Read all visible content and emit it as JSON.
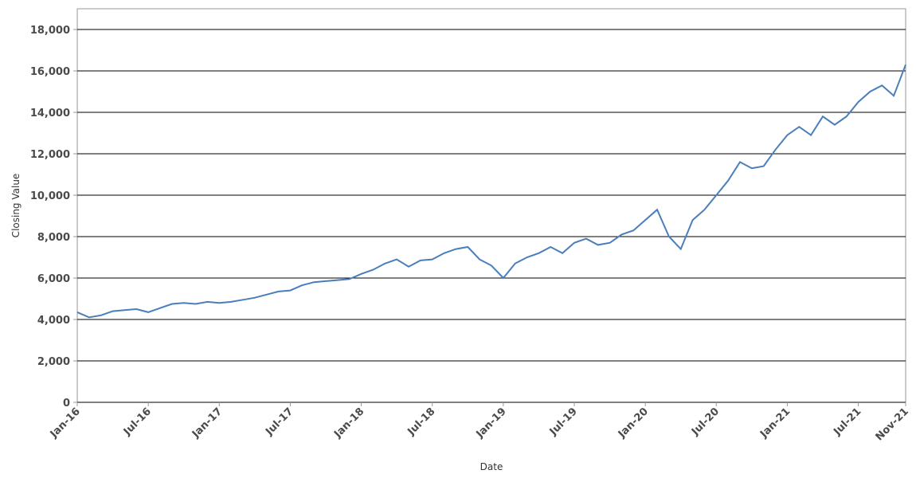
{
  "chart_data": {
    "type": "line",
    "x_label": "Date",
    "y_label": "Closing Value",
    "x": [
      "Jan-16",
      "Feb-16",
      "Mar-16",
      "Apr-16",
      "May-16",
      "Jun-16",
      "Jul-16",
      "Aug-16",
      "Sep-16",
      "Oct-16",
      "Nov-16",
      "Dec-16",
      "Jan-17",
      "Feb-17",
      "Mar-17",
      "Apr-17",
      "May-17",
      "Jun-17",
      "Jul-17",
      "Aug-17",
      "Sep-17",
      "Oct-17",
      "Nov-17",
      "Dec-17",
      "Jan-18",
      "Feb-18",
      "Mar-18",
      "Apr-18",
      "May-18",
      "Jun-18",
      "Jul-18",
      "Aug-18",
      "Sep-18",
      "Oct-18",
      "Nov-18",
      "Dec-18",
      "Jan-19",
      "Feb-19",
      "Mar-19",
      "Apr-19",
      "May-19",
      "Jun-19",
      "Jul-19",
      "Aug-19",
      "Sep-19",
      "Oct-19",
      "Nov-19",
      "Dec-19",
      "Jan-20",
      "Feb-20",
      "Mar-20",
      "Apr-20",
      "May-20",
      "Jun-20",
      "Jul-20",
      "Aug-20",
      "Sep-20",
      "Oct-20",
      "Nov-20",
      "Dec-20",
      "Jan-21",
      "Feb-21",
      "Mar-21",
      "Apr-21",
      "May-21",
      "Jun-21",
      "Jul-21",
      "Aug-21",
      "Sep-21",
      "Oct-21",
      "Nov-21"
    ],
    "series": [
      {
        "color": "#4a7ebb",
        "values": [
          4350,
          4100,
          4200,
          4400,
          4450,
          4500,
          4350,
          4550,
          4750,
          4800,
          4750,
          4850,
          4800,
          4850,
          4950,
          5050,
          5200,
          5350,
          5400,
          5650,
          5800,
          5850,
          5900,
          5950,
          6200,
          6400,
          6700,
          6900,
          6550,
          6850,
          6900,
          7200,
          7400,
          7500,
          6900,
          6600,
          6000,
          6700,
          7000,
          7200,
          7500,
          7200,
          7700,
          7900,
          7600,
          7700,
          8100,
          8300,
          8800,
          9300,
          8000,
          7400,
          8800,
          9300,
          10000,
          10700,
          11600,
          11300,
          11400,
          12200,
          12900,
          13300,
          12900,
          13800,
          13400,
          13800,
          14500,
          15000,
          15300,
          14800,
          16300
        ]
      }
    ],
    "xticks": [
      "Jan-16",
      "Jul-16",
      "Jan-17",
      "Jul-17",
      "Jan-18",
      "Jul-18",
      "Jan-19",
      "Jul-19",
      "Jan-20",
      "Jul-20",
      "Jan-21",
      "Jul-21",
      "Nov-21"
    ],
    "ylim": [
      0,
      19000
    ],
    "yticks": [
      {
        "value": 0,
        "label": "0"
      },
      {
        "value": 2000,
        "label": "2,000"
      },
      {
        "value": 4000,
        "label": "4,000"
      },
      {
        "value": 6000,
        "label": "6,000"
      },
      {
        "value": 8000,
        "label": "8,000"
      },
      {
        "value": 10000,
        "label": "10,000"
      },
      {
        "value": 12000,
        "label": "12,000"
      },
      {
        "value": 14000,
        "label": "14,000"
      },
      {
        "value": 16000,
        "label": "16,000"
      },
      {
        "value": 18000,
        "label": "18,000"
      }
    ],
    "grid": true
  }
}
